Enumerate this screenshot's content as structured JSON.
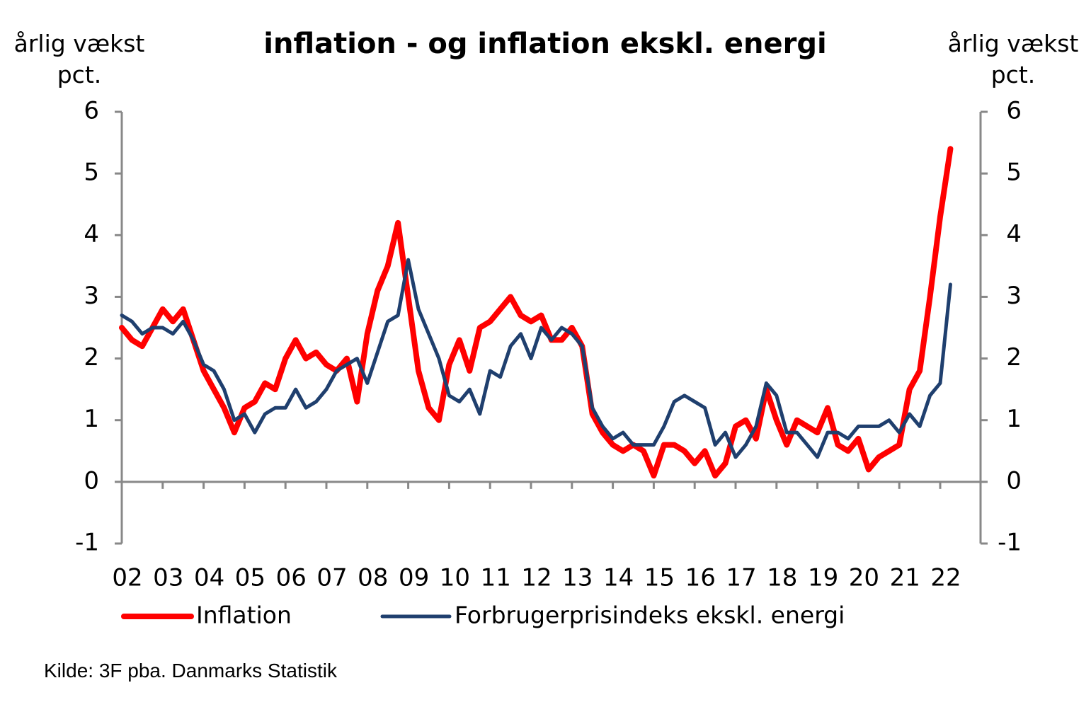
{
  "chart_data": {
    "type": "line",
    "title": "inflation - og inflation ekskl. energi",
    "y_label": "årlig vækst pct.",
    "y2_label": "årlig vækst pct.",
    "source": "Kilde: 3F pba. Danmarks Statistik",
    "categories": [
      "02",
      null,
      null,
      null,
      "03",
      null,
      null,
      null,
      "04",
      null,
      null,
      null,
      "05",
      null,
      null,
      null,
      "06",
      null,
      null,
      null,
      "07",
      null,
      null,
      null,
      "08",
      null,
      null,
      null,
      "09",
      null,
      null,
      null,
      "10",
      null,
      null,
      null,
      "11",
      null,
      null,
      null,
      "12",
      null,
      null,
      null,
      "13",
      null,
      null,
      null,
      "14",
      null,
      null,
      null,
      "15",
      null,
      null,
      null,
      "16",
      null,
      null,
      null,
      "17",
      null,
      null,
      null,
      "18",
      null,
      null,
      null,
      "19",
      null,
      null,
      null,
      "20",
      null,
      null,
      null,
      "21",
      null,
      null,
      null,
      "22",
      null
    ],
    "series": [
      {
        "name": "Inflation",
        "color": "#ff0000",
        "values": [
          2.5,
          2.3,
          2.2,
          2.5,
          2.8,
          2.6,
          2.8,
          2.3,
          1.8,
          1.5,
          1.2,
          0.8,
          1.2,
          1.3,
          1.6,
          1.5,
          2.0,
          2.3,
          2.0,
          2.1,
          1.9,
          1.8,
          2.0,
          1.3,
          2.4,
          3.1,
          3.5,
          4.2,
          3.0,
          1.8,
          1.2,
          1.0,
          1.9,
          2.3,
          1.8,
          2.5,
          2.6,
          2.8,
          3.0,
          2.7,
          2.6,
          2.7,
          2.3,
          2.3,
          2.5,
          2.2,
          1.1,
          0.8,
          0.6,
          0.5,
          0.6,
          0.5,
          0.1,
          0.6,
          0.6,
          0.5,
          0.3,
          0.5,
          0.1,
          0.3,
          0.9,
          1.0,
          0.7,
          1.5,
          1.0,
          0.6,
          1.0,
          0.9,
          0.8,
          1.2,
          0.6,
          0.5,
          0.7,
          0.2,
          0.4,
          0.5,
          0.6,
          1.5,
          1.8,
          3.0,
          4.3,
          5.4
        ]
      },
      {
        "name": "Forbrugerprisindeks ekskl. energi",
        "color": "#1f3f6e",
        "values": [
          2.7,
          2.6,
          2.4,
          2.5,
          2.5,
          2.4,
          2.6,
          2.3,
          1.9,
          1.8,
          1.5,
          1.0,
          1.1,
          0.8,
          1.1,
          1.2,
          1.2,
          1.5,
          1.2,
          1.3,
          1.5,
          1.8,
          1.9,
          2.0,
          1.6,
          2.1,
          2.6,
          2.7,
          3.6,
          2.8,
          2.4,
          2.0,
          1.4,
          1.3,
          1.5,
          1.1,
          1.8,
          1.7,
          2.2,
          2.4,
          2.0,
          2.5,
          2.3,
          2.5,
          2.4,
          2.2,
          1.2,
          0.9,
          0.7,
          0.8,
          0.6,
          0.6,
          0.6,
          0.9,
          1.3,
          1.4,
          1.3,
          1.2,
          0.6,
          0.8,
          0.4,
          0.6,
          0.9,
          1.6,
          1.4,
          0.8,
          0.8,
          0.6,
          0.4,
          0.8,
          0.8,
          0.7,
          0.9,
          0.9,
          0.9,
          1.0,
          0.8,
          1.1,
          0.9,
          1.4,
          1.6,
          3.2
        ]
      }
    ],
    "ylim": [
      -1,
      6
    ],
    "yticks": [
      -1,
      0,
      1,
      2,
      3,
      4,
      5,
      6
    ],
    "y2lim": [
      -1,
      6
    ],
    "y2ticks": [
      -1,
      0,
      1,
      2,
      3,
      4,
      5,
      6
    ],
    "grid": false
  }
}
